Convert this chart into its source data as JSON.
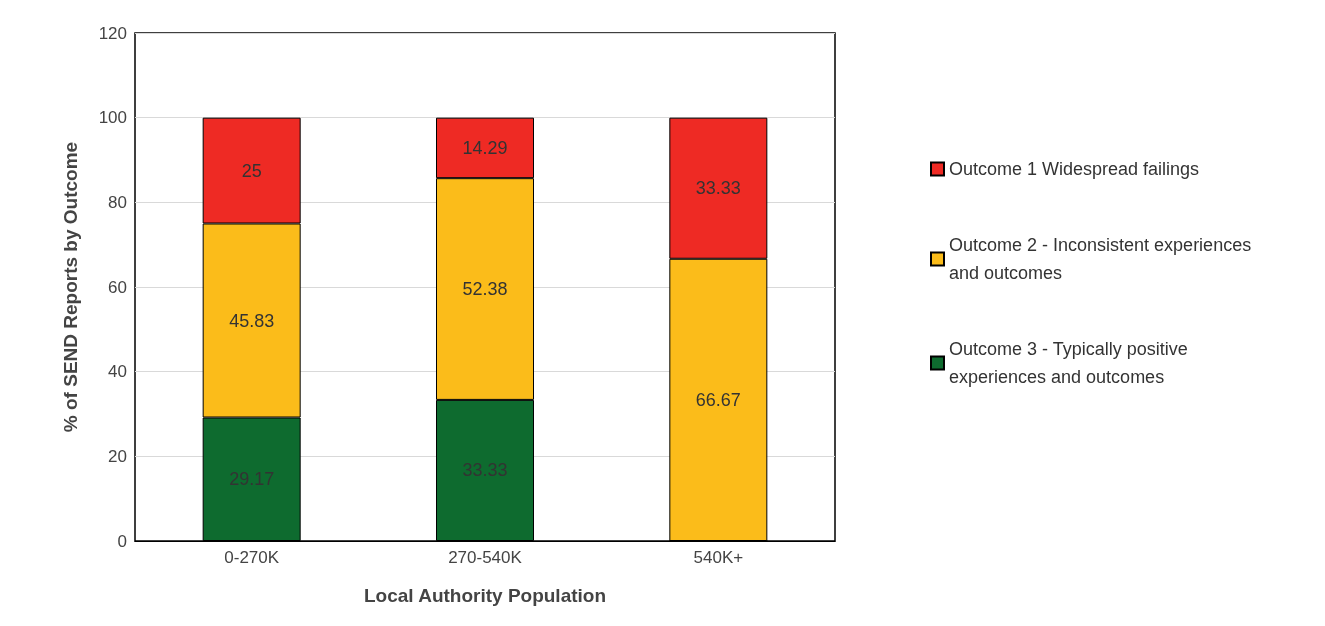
{
  "chart_data": {
    "type": "bar",
    "stacked": true,
    "xlabel": "Local Authority Population",
    "ylabel": "% of SEND Reports by Outcome",
    "categories": [
      "0-270K",
      "270-540K",
      "540K+"
    ],
    "series": [
      {
        "name": "Outcome 3 - Typically positive experiences and outcomes",
        "color": "#0e6b2f",
        "values": [
          29.17,
          33.33,
          0
        ],
        "value_labels": [
          "29.17",
          "33.33",
          null
        ]
      },
      {
        "name": "Outcome 2 - Inconsistent experiences and outcomes",
        "color": "#fbbc1a",
        "values": [
          45.83,
          52.38,
          66.67
        ],
        "value_labels": [
          "45.83",
          "52.38",
          "66.67"
        ]
      },
      {
        "name": "Outcome 1 Widespread failings",
        "color": "#ee2a24",
        "values": [
          25,
          14.29,
          33.33
        ],
        "value_labels": [
          "25",
          "14.29",
          "33.33"
        ]
      }
    ],
    "ylim": [
      0,
      120
    ],
    "yticks": [
      0,
      20,
      40,
      60,
      80,
      100,
      120
    ],
    "grid": "y",
    "legend": "right"
  }
}
